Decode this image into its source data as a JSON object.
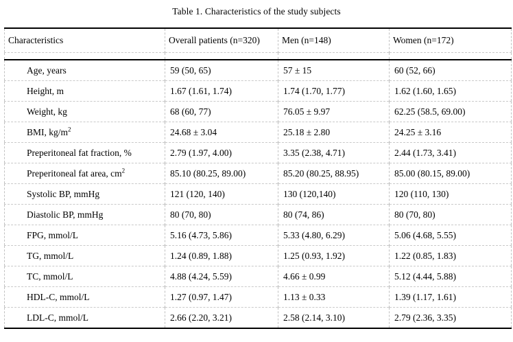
{
  "page": {
    "title": "Table 1. Characteristics of the study subjects"
  },
  "colors": {
    "background": "#ffffff",
    "text": "#000000",
    "strong_border": "#000000",
    "gridline_dashed": "#c0c0c0"
  },
  "table": {
    "columns": [
      "Characteristics",
      "Overall patients (n=320)",
      "Men (n=148)",
      "Women (n=172)"
    ],
    "rows": [
      {
        "label": "Age, years",
        "label_sup": "",
        "overall": "59 (50, 65)",
        "men": "57 ± 15",
        "women": "60 (52, 66)"
      },
      {
        "label": "Height, m",
        "label_sup": "",
        "overall": "1.67 (1.61, 1.74)",
        "men": "1.74 (1.70, 1.77)",
        "women": "1.62 (1.60, 1.65)"
      },
      {
        "label": "Weight, kg",
        "label_sup": "",
        "overall": "68 (60, 77)",
        "men": "76.05 ± 9.97",
        "women": "62.25 (58.5, 69.00)"
      },
      {
        "label": "BMI, kg/m",
        "label_sup": "2",
        "overall": "24.68 ± 3.04",
        "men": "25.18 ± 2.80",
        "women": "24.25 ± 3.16"
      },
      {
        "label": "Preperitoneal fat fraction, %",
        "label_sup": "",
        "overall": "2.79 (1.97, 4.00)",
        "men": "3.35 (2.38, 4.71)",
        "women": "2.44 (1.73, 3.41)"
      },
      {
        "label": "Preperitoneal fat area, cm",
        "label_sup": "2",
        "overall": "85.10 (80.25, 89.00)",
        "men": "85.20 (80.25, 88.95)",
        "women": "85.00 (80.15, 89.00)"
      },
      {
        "label": "Systolic BP, mmHg",
        "label_sup": "",
        "overall": "121 (120, 140)",
        "men": "130 (120,140)",
        "women": "120 (110, 130)"
      },
      {
        "label": "Diastolic BP, mmHg",
        "label_sup": "",
        "overall": "80 (70, 80)",
        "men": "80 (74, 86)",
        "women": "80 (70, 80)"
      },
      {
        "label": "FPG, mmol/L",
        "label_sup": "",
        "overall": "5.16 (4.73, 5.86)",
        "men": "5.33 (4.80, 6.29)",
        "women": "5.06 (4.68, 5.55)"
      },
      {
        "label": "TG, mmol/L",
        "label_sup": "",
        "overall": "1.24 (0.89, 1.88)",
        "men": "1.25 (0.93, 1.92)",
        "women": "1.22 (0.85, 1.83)"
      },
      {
        "label": "TC, mmol/L",
        "label_sup": "",
        "overall": "4.88 (4.24, 5.59)",
        "men": "4.66 ± 0.99",
        "women": "5.12 (4.44, 5.88)"
      },
      {
        "label": "HDL-C, mmol/L",
        "label_sup": "",
        "overall": "1.27 (0.97, 1.47)",
        "men": "1.13 ± 0.33",
        "women": "1.39 (1.17, 1.61)"
      },
      {
        "label": "LDL-C, mmol/L",
        "label_sup": "",
        "overall": "2.66 (2.20, 3.21)",
        "men": "2.58 (2.14, 3.10)",
        "women": "2.79 (2.36, 3.35)"
      }
    ]
  }
}
